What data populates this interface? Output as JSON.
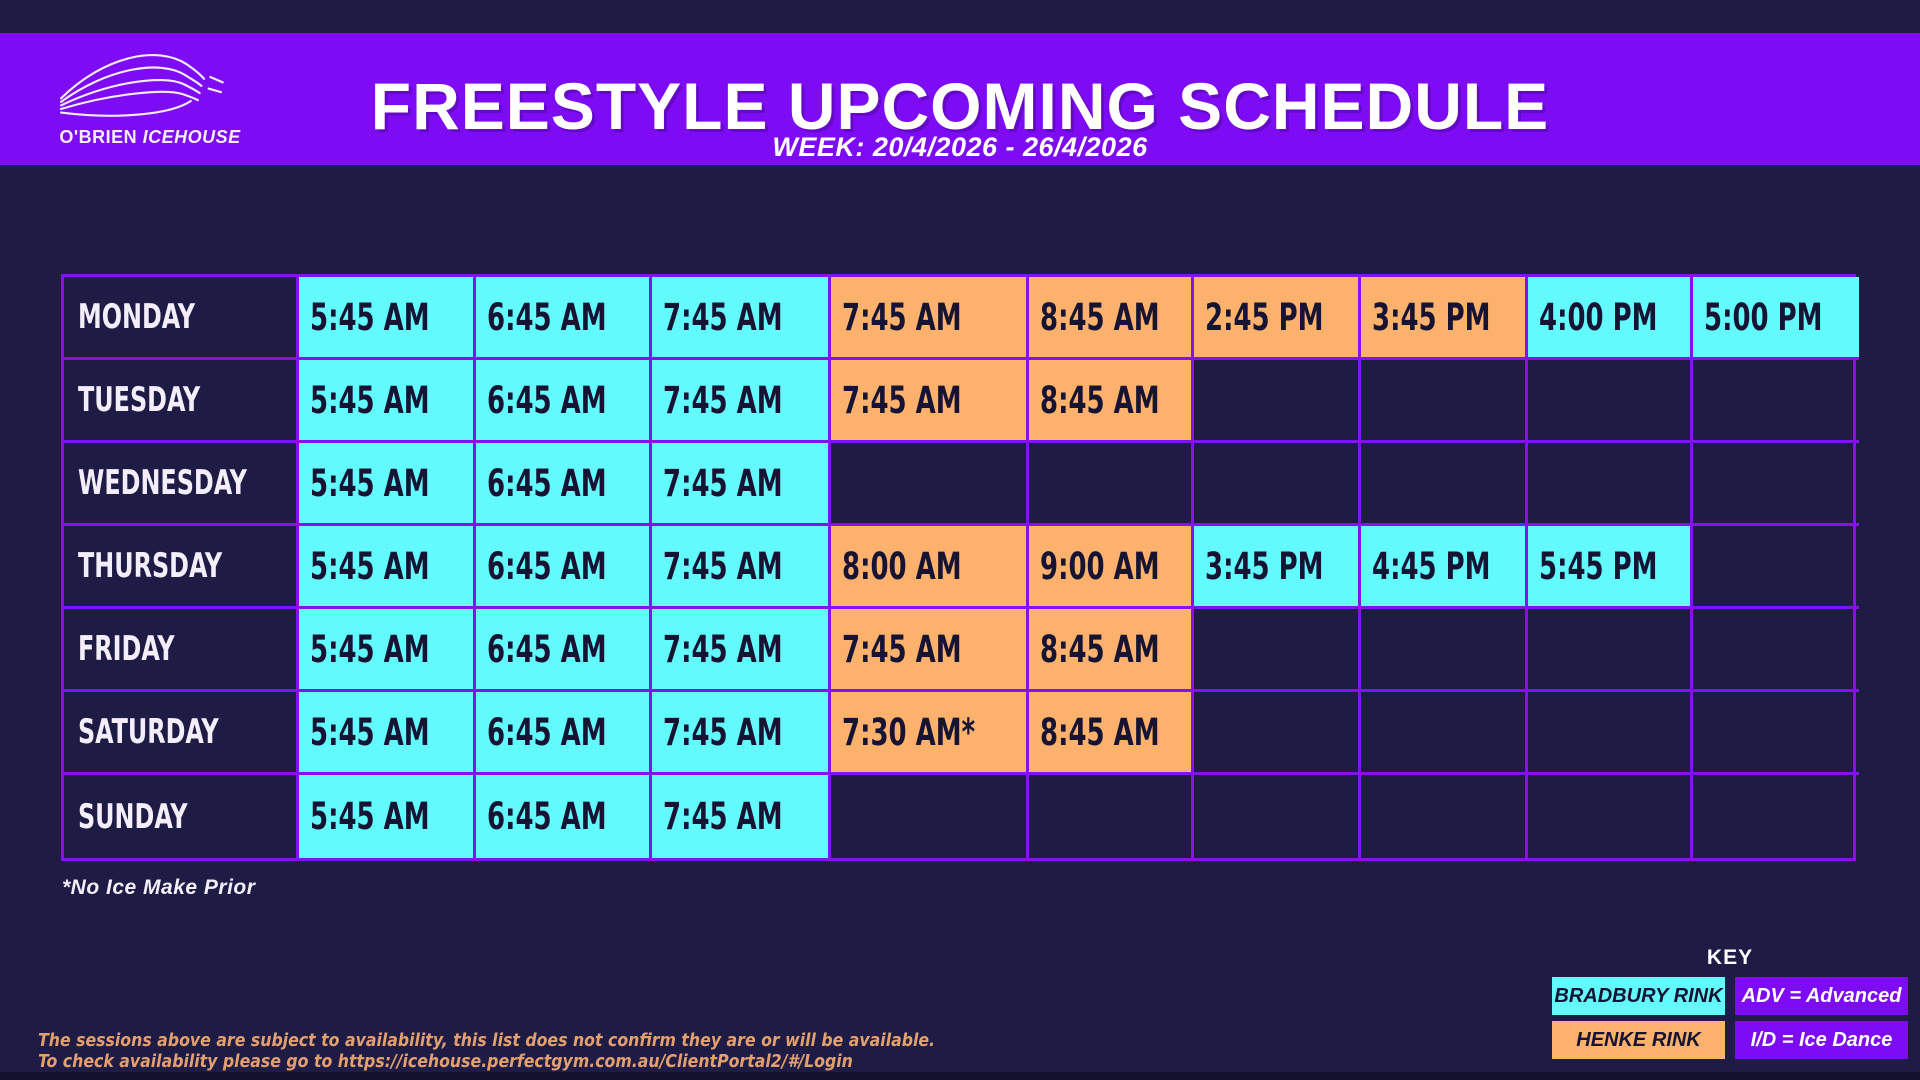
{
  "header": {
    "title": "FREESTYLE UPCOMING SCHEDULE",
    "week": "WEEK: 20/4/2026 - 26/4/2026",
    "logo": {
      "brand": "O'BRIEN",
      "brand_suffix": "ICEHOUSE",
      "icon": "icehouse-roof-logo"
    }
  },
  "colors": {
    "navy": "#1e1b45",
    "purple": "#7d0cf4",
    "border": "#8312f0",
    "cyan": "#63fafe",
    "orange": "#fcb26c",
    "ink": "#161333",
    "tan": "#e3a06f",
    "white": "#f4eefb",
    "strip": "#12102b"
  },
  "schedule": {
    "columns": 9,
    "rows": [
      {
        "day": "MONDAY",
        "sessions": [
          {
            "time": "5:45 AM",
            "rink": "bradbury"
          },
          {
            "time": "6:45 AM",
            "rink": "bradbury"
          },
          {
            "time": "7:45 AM",
            "rink": "bradbury"
          },
          {
            "time": "7:45 AM",
            "rink": "henke"
          },
          {
            "time": "8:45 AM",
            "rink": "henke"
          },
          {
            "time": "2:45 PM",
            "rink": "henke"
          },
          {
            "time": "3:45 PM",
            "rink": "henke"
          },
          {
            "time": "4:00 PM",
            "rink": "bradbury"
          },
          {
            "time": "5:00 PM",
            "rink": "bradbury"
          }
        ]
      },
      {
        "day": "TUESDAY",
        "sessions": [
          {
            "time": "5:45 AM",
            "rink": "bradbury"
          },
          {
            "time": "6:45 AM",
            "rink": "bradbury"
          },
          {
            "time": "7:45 AM",
            "rink": "bradbury"
          },
          {
            "time": "7:45 AM",
            "rink": "henke"
          },
          {
            "time": "8:45 AM",
            "rink": "henke"
          },
          null,
          null,
          null,
          null
        ]
      },
      {
        "day": "WEDNESDAY",
        "sessions": [
          {
            "time": "5:45 AM",
            "rink": "bradbury"
          },
          {
            "time": "6:45 AM",
            "rink": "bradbury"
          },
          {
            "time": "7:45 AM",
            "rink": "bradbury"
          },
          null,
          null,
          null,
          null,
          null,
          null
        ]
      },
      {
        "day": "THURSDAY",
        "sessions": [
          {
            "time": "5:45 AM",
            "rink": "bradbury"
          },
          {
            "time": "6:45 AM",
            "rink": "bradbury"
          },
          {
            "time": "7:45 AM",
            "rink": "bradbury"
          },
          {
            "time": "8:00 AM",
            "rink": "henke"
          },
          {
            "time": "9:00 AM",
            "rink": "henke"
          },
          {
            "time": "3:45 PM",
            "rink": "bradbury"
          },
          {
            "time": "4:45 PM",
            "rink": "bradbury"
          },
          {
            "time": "5:45 PM",
            "rink": "bradbury"
          },
          null
        ]
      },
      {
        "day": "FRIDAY",
        "sessions": [
          {
            "time": "5:45 AM",
            "rink": "bradbury"
          },
          {
            "time": "6:45 AM",
            "rink": "bradbury"
          },
          {
            "time": "7:45 AM",
            "rink": "bradbury"
          },
          {
            "time": "7:45 AM",
            "rink": "henke"
          },
          {
            "time": "8:45 AM",
            "rink": "henke"
          },
          null,
          null,
          null,
          null
        ]
      },
      {
        "day": "SATURDAY",
        "sessions": [
          {
            "time": "5:45 AM",
            "rink": "bradbury"
          },
          {
            "time": "6:45 AM",
            "rink": "bradbury"
          },
          {
            "time": "7:45 AM",
            "rink": "bradbury"
          },
          {
            "time": "7:30 AM*",
            "rink": "henke"
          },
          {
            "time": "8:45 AM",
            "rink": "henke"
          },
          null,
          null,
          null,
          null
        ]
      },
      {
        "day": "SUNDAY",
        "sessions": [
          {
            "time": "5:45 AM",
            "rink": "bradbury"
          },
          {
            "time": "6:45 AM",
            "rink": "bradbury"
          },
          {
            "time": "7:45 AM",
            "rink": "bradbury"
          },
          null,
          null,
          null,
          null,
          null,
          null
        ]
      }
    ]
  },
  "footnote": "*No Ice Make Prior",
  "key": {
    "title": "KEY",
    "items": [
      {
        "label": "BRADBURY RINK",
        "type": "rink",
        "rink": "bradbury"
      },
      {
        "label": "ADV = Advanced",
        "type": "abbreviation"
      },
      {
        "label": "HENKE RINK",
        "type": "rink",
        "rink": "henke"
      },
      {
        "label": "I/D = Ice Dance",
        "type": "abbreviation"
      }
    ]
  },
  "disclaimer": {
    "line1": "The sessions above are subject to availability, this list does not confirm they are or will be available.",
    "line2": "To check availability please go to https://icehouse.perfectgym.com.au/ClientPortal2/#/Login"
  }
}
